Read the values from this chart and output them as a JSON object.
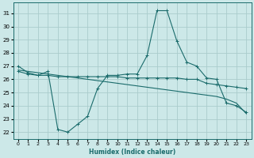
{
  "xlabel": "Humidex (Indice chaleur)",
  "xlim": [
    -0.5,
    23.5
  ],
  "ylim": [
    21.5,
    31.8
  ],
  "yticks": [
    22,
    23,
    24,
    25,
    26,
    27,
    28,
    29,
    30,
    31
  ],
  "xticks": [
    0,
    1,
    2,
    3,
    4,
    5,
    6,
    7,
    8,
    9,
    10,
    11,
    12,
    13,
    14,
    15,
    16,
    17,
    18,
    19,
    20,
    21,
    22,
    23
  ],
  "background_color": "#cce8e8",
  "grid_color": "#aacccc",
  "line_color": "#1a6b6b",
  "line1_x": [
    0,
    1,
    2,
    3,
    4,
    5,
    6,
    7,
    8,
    9,
    10,
    11,
    12,
    13,
    14,
    15,
    16,
    17,
    18,
    19,
    20,
    21,
    22,
    23
  ],
  "line1_y": [
    27.0,
    26.5,
    26.3,
    26.6,
    22.2,
    22.0,
    22.6,
    23.2,
    25.3,
    26.3,
    26.3,
    26.4,
    26.4,
    27.8,
    31.2,
    31.2,
    28.9,
    27.3,
    27.0,
    26.1,
    26.0,
    24.2,
    24.0,
    23.5
  ],
  "line2_x": [
    0,
    1,
    2,
    3,
    4,
    5,
    6,
    7,
    8,
    9,
    10,
    11,
    12,
    13,
    14,
    15,
    16,
    17,
    18,
    19,
    20,
    21,
    22,
    23
  ],
  "line2_y": [
    26.6,
    26.4,
    26.3,
    26.3,
    26.2,
    26.2,
    26.2,
    26.2,
    26.2,
    26.2,
    26.2,
    26.1,
    26.1,
    26.1,
    26.1,
    26.1,
    26.1,
    26.0,
    26.0,
    25.7,
    25.6,
    25.5,
    25.4,
    25.3
  ],
  "line3_x": [
    0,
    1,
    2,
    3,
    4,
    5,
    6,
    7,
    8,
    9,
    10,
    11,
    12,
    13,
    14,
    15,
    16,
    17,
    18,
    19,
    20,
    21,
    22,
    23
  ],
  "line3_y": [
    26.7,
    26.6,
    26.5,
    26.4,
    26.3,
    26.2,
    26.1,
    26.0,
    25.9,
    25.8,
    25.7,
    25.6,
    25.5,
    25.4,
    25.3,
    25.2,
    25.1,
    25.0,
    24.9,
    24.8,
    24.7,
    24.5,
    24.2,
    23.4
  ]
}
